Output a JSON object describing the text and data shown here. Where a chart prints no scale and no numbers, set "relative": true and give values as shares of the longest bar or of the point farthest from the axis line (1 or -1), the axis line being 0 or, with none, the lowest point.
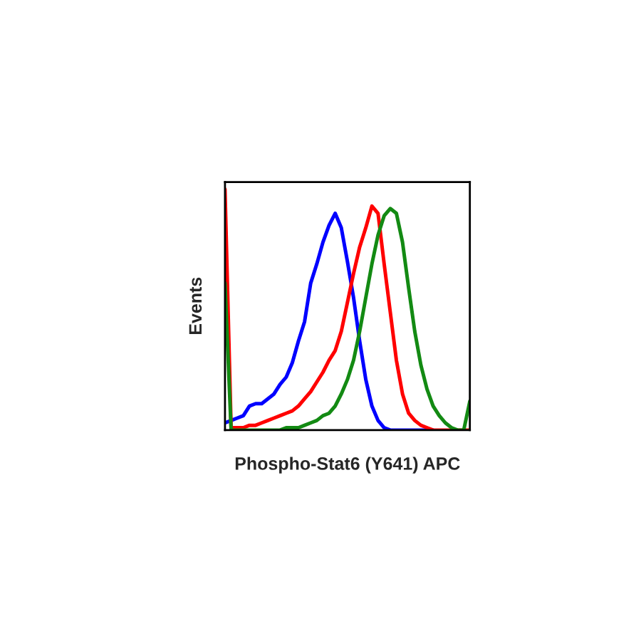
{
  "chart_data": {
    "type": "line",
    "relative": true,
    "xlabel": "Phospho-Stat6 (Y641) APC",
    "ylabel": "Events",
    "grid": false,
    "legend": false,
    "marker": "none",
    "line_style": "solid",
    "categories": [
      null,
      null,
      null,
      null,
      null,
      null,
      null,
      null,
      null,
      null,
      null,
      null,
      null,
      null,
      null,
      null,
      null,
      null,
      null,
      null,
      null,
      null,
      null,
      null,
      null,
      null,
      null,
      null,
      null,
      null,
      null,
      null,
      null,
      null,
      null,
      null,
      null,
      null,
      null,
      null,
      null
    ],
    "series": [
      {
        "color": "#0000ff",
        "values": [
          0.03,
          0.04,
          0.05,
          0.06,
          0.1,
          0.11,
          0.11,
          0.13,
          0.15,
          0.19,
          0.22,
          0.28,
          0.37,
          0.45,
          0.61,
          0.69,
          0.78,
          0.85,
          0.9,
          0.84,
          0.7,
          0.55,
          0.37,
          0.21,
          0.1,
          0.04,
          0.01,
          0,
          0,
          0,
          0,
          0,
          0,
          0,
          0,
          null,
          null,
          null,
          null,
          null,
          null
        ]
      },
      {
        "color": "#ff0000",
        "values": [
          1.0,
          0.01,
          0.01,
          0.01,
          0.02,
          0.02,
          0.03,
          0.04,
          0.05,
          0.06,
          0.07,
          0.08,
          0.1,
          0.13,
          0.16,
          0.2,
          0.24,
          0.29,
          0.33,
          0.41,
          0.53,
          0.65,
          0.76,
          0.84,
          0.93,
          0.9,
          0.69,
          0.49,
          0.29,
          0.15,
          0.07,
          0.04,
          0.02,
          0.01,
          0,
          0,
          0,
          0,
          0,
          0,
          0
        ]
      },
      {
        "color": "#138a13",
        "values": [
          0.61,
          0,
          0,
          0,
          0,
          0,
          0,
          0,
          0,
          0,
          0.01,
          0.01,
          0.01,
          0.02,
          0.03,
          0.04,
          0.06,
          0.07,
          0.1,
          0.15,
          0.21,
          0.29,
          0.41,
          0.55,
          0.69,
          0.81,
          0.89,
          0.92,
          0.9,
          0.78,
          0.59,
          0.41,
          0.27,
          0.17,
          0.1,
          0.06,
          0.03,
          0.01,
          0,
          0,
          0.12
        ]
      }
    ]
  }
}
